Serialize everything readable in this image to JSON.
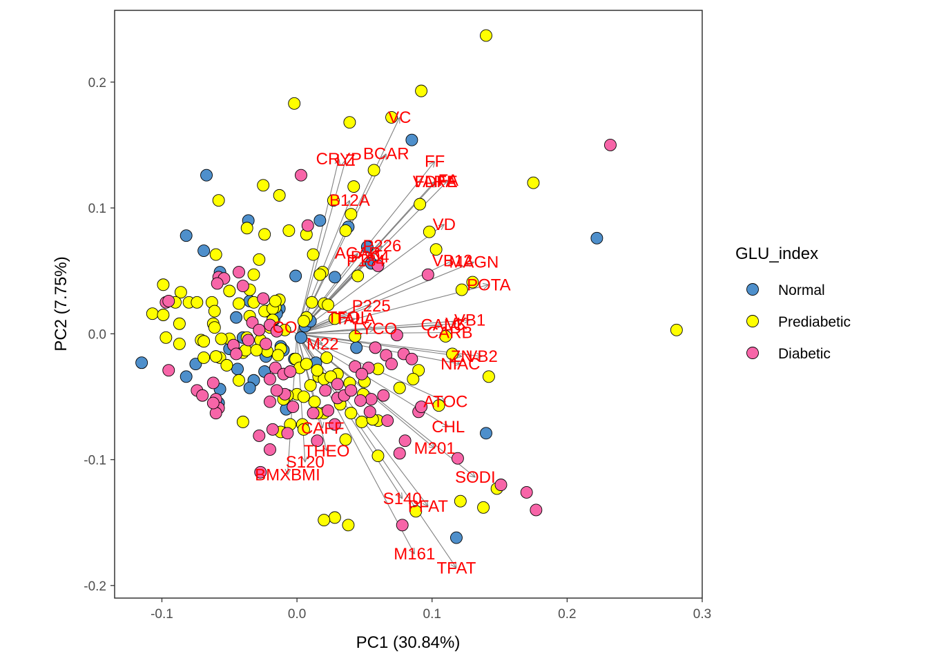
{
  "chart_data": {
    "type": "scatter",
    "xlabel": "PC1 (30.84%)",
    "ylabel": "PC2 (7.75%)",
    "xlim": [
      -0.135,
      0.3
    ],
    "ylim": [
      -0.21,
      0.257
    ],
    "x_ticks": [
      -0.1,
      0.0,
      0.1,
      0.2,
      0.3
    ],
    "x_tick_labels": [
      "-0.1",
      "0.0",
      "0.1",
      "0.2",
      "0.3"
    ],
    "y_ticks": [
      -0.2,
      -0.1,
      0.0,
      0.1,
      0.2
    ],
    "y_tick_labels": [
      "-0.2",
      "-0.1",
      "0.0",
      "0.1",
      "0.2"
    ],
    "grid": false,
    "legend": {
      "title": "GLU_index",
      "position": "right",
      "entries": [
        {
          "name": "Normal",
          "color": "#4E8FCB"
        },
        {
          "name": "Prediabetic",
          "color": "#FFFF00"
        },
        {
          "name": "Diabetic",
          "color": "#F765A8"
        }
      ]
    },
    "arrow_color": "#808080",
    "label_color": "#FF0000",
    "loadings": [
      {
        "label": "VC",
        "x": 0.076,
        "y": 0.172
      },
      {
        "label": "BCAR",
        "x": 0.066,
        "y": 0.143
      },
      {
        "label": "CRYP",
        "x": 0.031,
        "y": 0.139
      },
      {
        "label": "LZ",
        "x": 0.036,
        "y": 0.138
      },
      {
        "label": "FF",
        "x": 0.102,
        "y": 0.137
      },
      {
        "label": "VARA",
        "x": 0.102,
        "y": 0.121
      },
      {
        "label": "FDFE",
        "x": 0.103,
        "y": 0.121
      },
      {
        "label": "FA",
        "x": 0.112,
        "y": 0.122
      },
      {
        "label": "B12A",
        "x": 0.039,
        "y": 0.106
      },
      {
        "label": "VD",
        "x": 0.109,
        "y": 0.087
      },
      {
        "label": "P226",
        "x": 0.063,
        "y": 0.07
      },
      {
        "label": "ACAR",
        "x": 0.045,
        "y": 0.064
      },
      {
        "label": "P184",
        "x": 0.051,
        "y": 0.058
      },
      {
        "label": "P204",
        "x": 0.054,
        "y": 0.061
      },
      {
        "label": "VB12",
        "x": 0.115,
        "y": 0.058
      },
      {
        "label": "MAGN",
        "x": 0.131,
        "y": 0.057
      },
      {
        "label": "POTA",
        "x": 0.142,
        "y": 0.039
      },
      {
        "label": "P225",
        "x": 0.055,
        "y": 0.022
      },
      {
        "label": "TFOL",
        "x": 0.038,
        "y": 0.013
      },
      {
        "label": "TALA",
        "x": 0.043,
        "y": 0.012
      },
      {
        "label": "VB1",
        "x": 0.128,
        "y": 0.011
      },
      {
        "label": "CALC",
        "x": 0.108,
        "y": 0.007
      },
      {
        "label": "VK",
        "x": 0.118,
        "y": 0.008
      },
      {
        "label": "CARB",
        "x": 0.113,
        "y": 0.001
      },
      {
        "label": "LYCO",
        "x": 0.058,
        "y": 0.004
      },
      {
        "label": "CO",
        "x": -0.009,
        "y": 0.005
      },
      {
        "label": "M22",
        "x": 0.019,
        "y": -0.008
      },
      {
        "label": "ZN",
        "x": 0.122,
        "y": -0.018
      },
      {
        "label": "NIAC",
        "x": 0.121,
        "y": -0.024
      },
      {
        "label": "VB2",
        "x": 0.137,
        "y": -0.018
      },
      {
        "label": "ATOC",
        "x": 0.11,
        "y": -0.054
      },
      {
        "label": "CHL",
        "x": 0.112,
        "y": -0.074
      },
      {
        "label": "CAFF",
        "x": 0.019,
        "y": -0.075
      },
      {
        "label": "THEO",
        "x": 0.022,
        "y": -0.093
      },
      {
        "label": "M201",
        "x": 0.102,
        "y": -0.091
      },
      {
        "label": "S120",
        "x": 0.006,
        "y": -0.102
      },
      {
        "label": "BMXBMI",
        "x": -0.007,
        "y": -0.112
      },
      {
        "label": "SODI",
        "x": 0.132,
        "y": -0.114
      },
      {
        "label": "S140",
        "x": 0.078,
        "y": -0.131
      },
      {
        "label": "PFAT",
        "x": 0.097,
        "y": -0.137
      },
      {
        "label": "M161",
        "x": 0.087,
        "y": -0.175
      },
      {
        "label": "TFAT",
        "x": 0.118,
        "y": -0.186
      }
    ],
    "series": [
      {
        "name": "Normal",
        "color": "#4E8FCB",
        "x": [
          0.085,
          0.052,
          0.055,
          0.038,
          0.017,
          0.028,
          -0.036,
          -0.082,
          -0.069,
          -0.057,
          -0.067,
          -0.022,
          -0.001,
          -0.013,
          -0.045,
          -0.017,
          -0.035,
          0.006,
          0.01,
          -0.015,
          0.003,
          -0.04,
          -0.023,
          -0.057,
          -0.082,
          -0.115,
          -0.075,
          -0.024,
          -0.032,
          -0.044,
          -0.058,
          -0.035,
          -0.008,
          -0.05,
          -0.012,
          0.044,
          0.222,
          0.14,
          0.118,
          -0.027,
          -0.01,
          -0.002,
          0.014
        ],
        "y": [
          0.154,
          0.069,
          0.056,
          0.085,
          0.09,
          0.045,
          0.09,
          0.078,
          0.066,
          0.049,
          0.126,
          0.018,
          0.046,
          0.02,
          0.013,
          0.011,
          0.026,
          0.006,
          0.01,
          0.016,
          -0.003,
          -0.003,
          -0.018,
          -0.044,
          -0.034,
          -0.023,
          -0.024,
          -0.03,
          -0.037,
          -0.028,
          -0.055,
          -0.043,
          -0.06,
          -0.012,
          -0.01,
          -0.011,
          0.076,
          -0.079,
          -0.162,
          -0.011,
          -0.013,
          -0.02,
          -0.023
        ]
      },
      {
        "name": "Prediabetic",
        "color": "#FFFF00",
        "x": [
          0.14,
          0.092,
          0.07,
          -0.002,
          0.039,
          0.057,
          0.042,
          0.175,
          0.027,
          0.04,
          -0.025,
          -0.013,
          -0.058,
          0.091,
          0.098,
          0.103,
          0.012,
          0.045,
          0.007,
          0.036,
          -0.037,
          -0.024,
          -0.006,
          0.019,
          0.017,
          0.011,
          0.02,
          0.023,
          0.028,
          0.007,
          -0.035,
          -0.013,
          -0.028,
          -0.032,
          -0.06,
          -0.086,
          -0.05,
          -0.063,
          -0.043,
          -0.032,
          -0.016,
          -0.024,
          -0.061,
          -0.08,
          -0.099,
          -0.09,
          -0.107,
          -0.099,
          -0.074,
          -0.087,
          -0.035,
          -0.062,
          -0.061,
          -0.097,
          -0.05,
          -0.087,
          -0.071,
          -0.069,
          -0.056,
          -0.037,
          -0.018,
          -0.016,
          -0.018,
          0.005,
          -0.02,
          -0.009,
          -0.012,
          -0.027,
          -0.022,
          -0.014,
          -0.001,
          0.002,
          0.007,
          0.016,
          0.02,
          -0.04,
          -0.057,
          -0.038,
          -0.03,
          -0.069,
          -0.06,
          -0.043,
          -0.052,
          0.01,
          0.015,
          0.03,
          0.043,
          0.06,
          0.05,
          0.076,
          0.09,
          0.086,
          0.11,
          0.105,
          0.115,
          0.142,
          0.148,
          0.121,
          0.138,
          0.088,
          0.06,
          0.0,
          0.005,
          0.013,
          -0.007,
          -0.01,
          -0.04,
          0.02,
          0.015,
          0.025,
          0.039,
          0.048,
          0.06,
          -0.012,
          0.004,
          0.056,
          0.028,
          0.02,
          0.038,
          0.281,
          0.13,
          0.122,
          0.022,
          0.049,
          0.032,
          0.04,
          0.036,
          -0.005,
          0.005
        ],
        "y": [
          0.237,
          0.193,
          0.172,
          0.183,
          0.168,
          0.13,
          0.117,
          0.12,
          0.106,
          0.095,
          0.118,
          0.11,
          0.106,
          0.103,
          0.081,
          0.067,
          0.063,
          0.046,
          0.079,
          0.082,
          0.084,
          0.079,
          0.082,
          0.049,
          0.047,
          0.025,
          0.024,
          0.023,
          0.012,
          0.013,
          0.035,
          0.027,
          0.059,
          0.047,
          0.063,
          0.033,
          0.034,
          0.025,
          0.024,
          0.025,
          0.021,
          0.018,
          0.018,
          0.025,
          0.039,
          0.025,
          0.016,
          0.015,
          0.025,
          0.008,
          0.014,
          0.008,
          0.005,
          -0.003,
          -0.004,
          -0.008,
          -0.005,
          -0.006,
          -0.004,
          -0.003,
          0.02,
          0.026,
          0.011,
          0.01,
          0.005,
          0.003,
          -0.012,
          -0.005,
          -0.014,
          -0.017,
          -0.02,
          -0.027,
          -0.024,
          -0.034,
          -0.036,
          -0.015,
          -0.019,
          -0.013,
          -0.013,
          -0.019,
          -0.018,
          -0.037,
          -0.025,
          -0.041,
          -0.029,
          -0.032,
          -0.002,
          -0.028,
          -0.038,
          -0.043,
          -0.029,
          -0.036,
          -0.002,
          -0.057,
          -0.016,
          -0.034,
          -0.123,
          -0.133,
          -0.138,
          -0.141,
          -0.097,
          -0.048,
          -0.05,
          -0.054,
          -0.049,
          -0.052,
          -0.07,
          -0.063,
          -0.063,
          -0.034,
          -0.039,
          -0.07,
          -0.069,
          -0.078,
          -0.072,
          -0.068,
          -0.146,
          -0.148,
          -0.152,
          0.003,
          0.041,
          0.035,
          -0.019,
          -0.048,
          -0.056,
          -0.063,
          -0.084,
          -0.072,
          -0.076
        ]
      },
      {
        "name": "Diabetic",
        "color": "#F765A8",
        "x": [
          0.232,
          0.008,
          0.003,
          0.097,
          0.06,
          0.074,
          0.058,
          0.066,
          0.079,
          0.085,
          0.07,
          0.043,
          0.053,
          0.048,
          0.064,
          0.055,
          0.021,
          0.03,
          0.035,
          0.047,
          -0.003,
          -0.009,
          -0.015,
          -0.02,
          -0.036,
          -0.04,
          -0.043,
          -0.058,
          -0.054,
          -0.059,
          -0.062,
          -0.074,
          -0.095,
          -0.07,
          -0.06,
          -0.058,
          -0.06,
          -0.062,
          -0.097,
          -0.095,
          -0.033,
          -0.028,
          -0.02,
          -0.015,
          -0.023,
          -0.047,
          -0.045,
          -0.016,
          -0.01,
          -0.005,
          -0.028,
          -0.018,
          -0.02,
          -0.027,
          -0.007,
          -0.02,
          0.012,
          0.03,
          0.04,
          0.023,
          0.028,
          0.015,
          0.054,
          0.067,
          0.08,
          0.076,
          0.119,
          0.151,
          0.17,
          0.177,
          0.078,
          0.09,
          0.092,
          -0.025
        ],
        "y": [
          0.15,
          0.086,
          0.126,
          0.047,
          0.054,
          -0.001,
          -0.011,
          -0.017,
          -0.016,
          -0.02,
          -0.024,
          -0.026,
          -0.027,
          -0.032,
          -0.049,
          -0.052,
          -0.045,
          -0.051,
          -0.049,
          -0.053,
          -0.058,
          -0.048,
          -0.045,
          -0.036,
          -0.005,
          0.038,
          0.049,
          0.045,
          0.044,
          0.04,
          -0.039,
          -0.045,
          -0.029,
          -0.049,
          -0.052,
          -0.059,
          -0.063,
          -0.055,
          0.025,
          0.026,
          0.009,
          0.003,
          0.007,
          0.002,
          -0.008,
          -0.009,
          -0.016,
          -0.027,
          -0.032,
          -0.03,
          -0.081,
          -0.076,
          -0.092,
          -0.11,
          -0.079,
          -0.054,
          -0.063,
          -0.04,
          -0.045,
          -0.061,
          -0.072,
          -0.085,
          -0.062,
          -0.069,
          -0.085,
          -0.095,
          -0.099,
          -0.12,
          -0.126,
          -0.14,
          -0.152,
          -0.062,
          -0.058,
          0.028
        ]
      }
    ]
  }
}
